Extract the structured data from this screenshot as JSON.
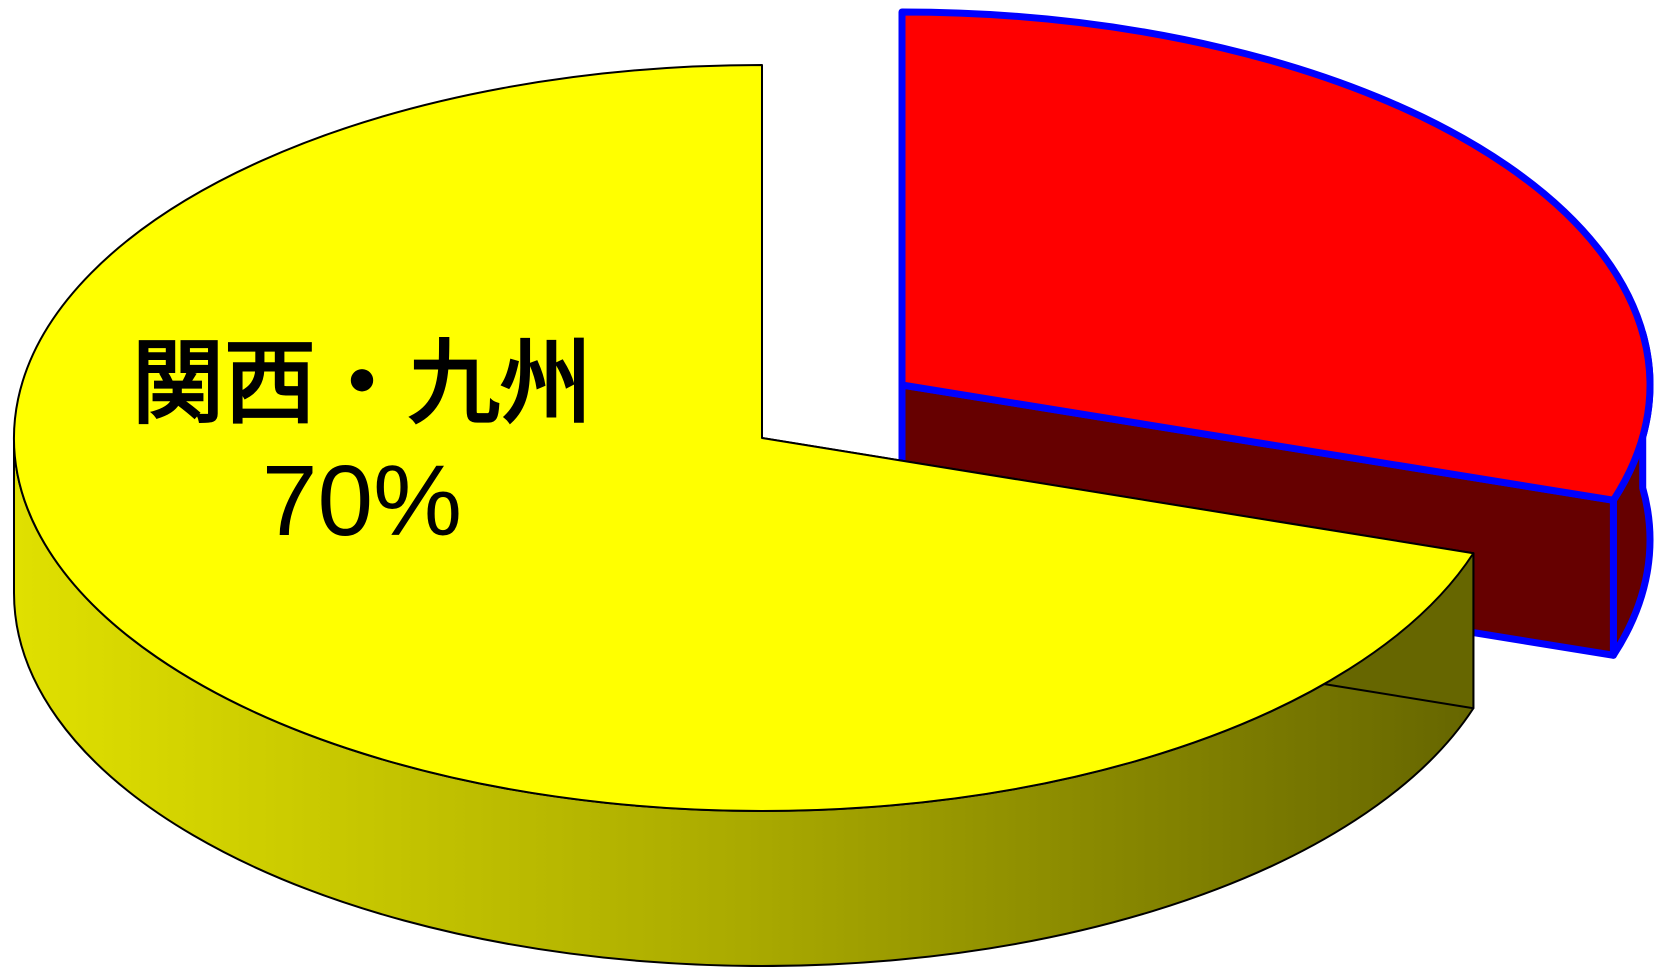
{
  "chart_data": {
    "type": "pie",
    "style": "3d-exploded",
    "title": "",
    "slices": [
      {
        "label": "関西・九州",
        "value_label": "70%",
        "value": 70,
        "color": "#ffff00",
        "side_color_light": "#e0e000",
        "side_color_dark": "#666600",
        "exploded": false,
        "labeled": true
      },
      {
        "value": 30,
        "color": "#ff0000",
        "side_color": "#660000",
        "border_color": "#0000ff",
        "exploded": true,
        "labeled": false
      }
    ]
  }
}
